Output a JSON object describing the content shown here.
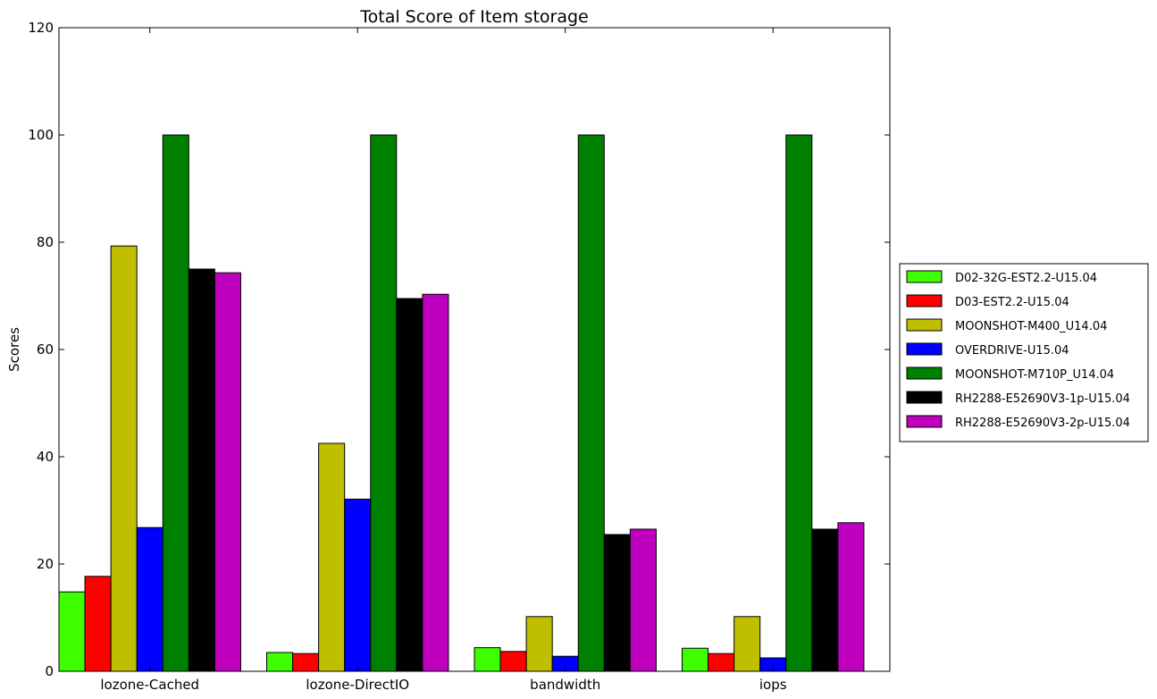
{
  "chart_data": {
    "type": "bar",
    "title": "Total Score of Item storage",
    "xlabel": "",
    "ylabel": "Scores",
    "ylim": [
      0,
      120
    ],
    "yticks": [
      0,
      20,
      40,
      60,
      80,
      100,
      120
    ],
    "categories": [
      "lozone-Cached",
      "lozone-DirectIO",
      "bandwidth",
      "iops"
    ],
    "legend_position": "right",
    "grid": false,
    "series": [
      {
        "name": "D02-32G-EST2.2-U15.04",
        "color": "#3dff00",
        "values": [
          14.8,
          3.5,
          4.4,
          4.3
        ]
      },
      {
        "name": "D03-EST2.2-U15.04",
        "color": "#ff0000",
        "values": [
          17.7,
          3.3,
          3.7,
          3.3
        ]
      },
      {
        "name": "MOONSHOT-M400_U14.04",
        "color": "#bfbf00",
        "values": [
          79.3,
          42.5,
          10.2,
          10.2
        ]
      },
      {
        "name": "OVERDRIVE-U15.04",
        "color": "#0000ff",
        "values": [
          26.8,
          32.1,
          2.8,
          2.5
        ]
      },
      {
        "name": "MOONSHOT-M710P_U14.04",
        "color": "#008000",
        "values": [
          100,
          100,
          100,
          100
        ]
      },
      {
        "name": "RH2288-E52690V3-1p-U15.04",
        "color": "#000000",
        "values": [
          75.0,
          69.5,
          25.5,
          26.5
        ]
      },
      {
        "name": "RH2288-E52690V3-2p-U15.04",
        "color": "#bf00bf",
        "values": [
          74.3,
          70.3,
          26.5,
          27.7
        ]
      }
    ]
  }
}
